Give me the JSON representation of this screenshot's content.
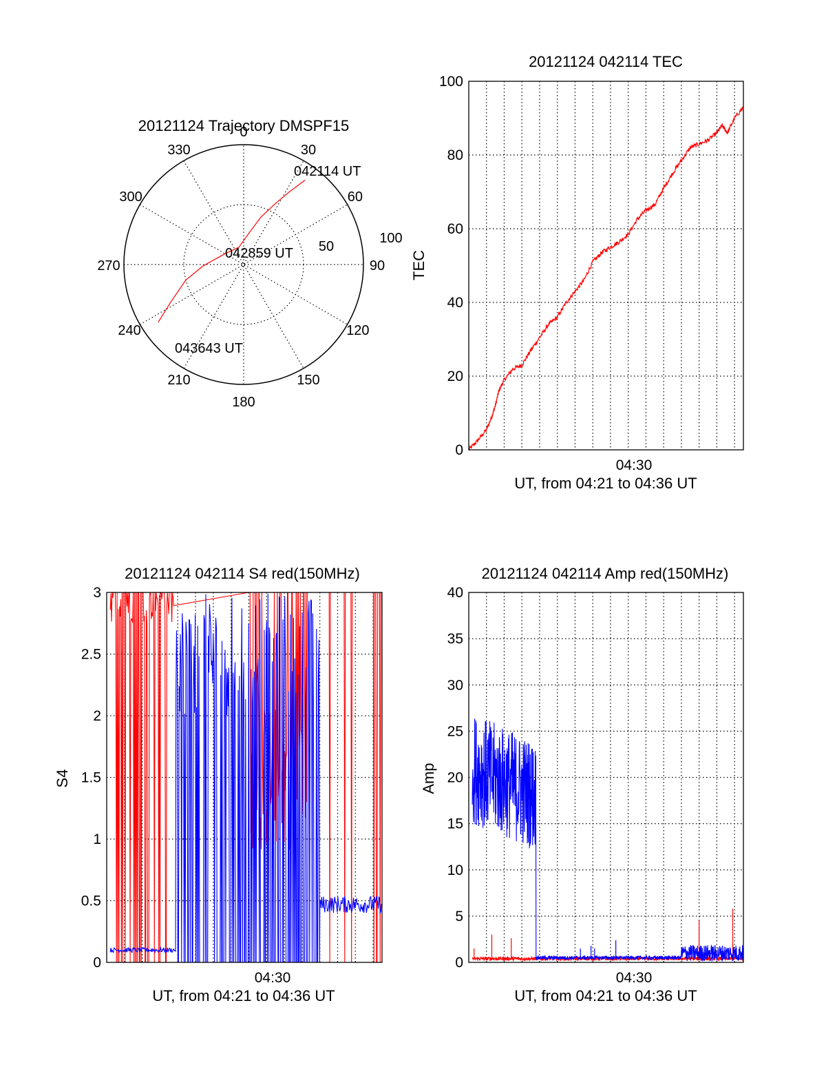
{
  "colors": {
    "red": "#ff0000",
    "blue": "#0000ff",
    "axis": "#000000"
  },
  "chart_data": [
    {
      "id": "trajectory",
      "type": "polar",
      "title": "20121124 Trajectory DMSPF15",
      "azimuth_labels": [
        "0",
        "30",
        "60",
        "90",
        "120",
        "150",
        "180",
        "210",
        "240",
        "270",
        "300",
        "330"
      ],
      "radius_labels": [
        "50",
        "100"
      ],
      "radius_max": 100,
      "grid": true,
      "annotations": [
        {
          "text": "042114 UT",
          "az": 36,
          "r": 87
        },
        {
          "text": "042859 UT",
          "az": 0,
          "r": 0
        },
        {
          "text": "043643 UT",
          "az": 222,
          "r": 86
        }
      ],
      "series": [
        {
          "color": "red",
          "points": [
            [
              36,
              87
            ],
            [
              32,
              71
            ],
            [
              27,
              56
            ],
            [
              20,
              42
            ],
            [
              10,
              27
            ],
            [
              345,
              15
            ],
            [
              300,
              18
            ],
            [
              268,
              34
            ],
            [
              255,
              50
            ],
            [
              243,
              68
            ],
            [
              236,
              86
            ]
          ]
        }
      ]
    },
    {
      "id": "tec",
      "type": "line",
      "title": "20121124 042114 TEC",
      "xlabel": "UT, from 04:21 to 04:36 UT",
      "ylabel": "TEC",
      "xtick_labels": [
        "04:30"
      ],
      "xlim_minutes": [
        0,
        15.5
      ],
      "ylim": [
        0,
        100
      ],
      "yticks": [
        0,
        20,
        40,
        60,
        80,
        100
      ],
      "grid": true,
      "series": [
        {
          "color": "red",
          "x": [
            0,
            0.5,
            1,
            1.3,
            1.5,
            1.7,
            2,
            2.5,
            3,
            3.5,
            4,
            4.5,
            5,
            5.5,
            6,
            6.5,
            7,
            7.5,
            8,
            8.5,
            9,
            9.5,
            10,
            10.5,
            11,
            11.5,
            12,
            12.5,
            13,
            13.5,
            14,
            14.3,
            14.6,
            15,
            15.5
          ],
          "y": [
            0,
            2.5,
            5.5,
            9,
            12,
            16,
            19,
            22,
            23,
            27,
            30.5,
            34,
            36,
            40,
            43,
            46,
            51,
            53.5,
            55,
            56.5,
            58.5,
            62.5,
            65,
            66.5,
            71,
            75,
            78.5,
            82,
            83,
            84,
            86,
            88,
            86,
            90,
            93
          ]
        }
      ]
    },
    {
      "id": "s4",
      "type": "line",
      "title": "20121124 042114 S4 red(150MHz)",
      "xlabel": "UT, from 04:21 to 04:36 UT",
      "ylabel": "S4",
      "xtick_labels": [
        "04:30"
      ],
      "xlim_minutes": [
        0,
        15.5
      ],
      "ylim": [
        0,
        3
      ],
      "yticks": [
        "0",
        "0.5",
        "1",
        "1.5",
        "2",
        "2.5",
        "3"
      ],
      "grid": true,
      "series": [
        {
          "color": "red",
          "segments": [
            {
              "x_range": [
                0.2,
                3.8
              ],
              "baseline": 3.0,
              "noise": 0.25,
              "spike_to": 0.0,
              "spike_prob": 0.18
            },
            {
              "x_range": [
                8.0,
                11.3
              ],
              "baseline": 1.5,
              "noise": 0.6,
              "spike_to": 3.0,
              "spike_prob": 0.35
            },
            {
              "x_range": [
                11.3,
                15.5
              ],
              "baseline": 3.0,
              "noise": 0.0,
              "spike_to": 0.0,
              "spike_prob": 0.05
            }
          ]
        },
        {
          "color": "blue",
          "segments": [
            {
              "x_range": [
                0.2,
                3.9
              ],
              "baseline": 0.1,
              "noise": 0.02,
              "spike_to": 0.1,
              "spike_prob": 0.0
            },
            {
              "x_range": [
                3.9,
                12.0
              ],
              "baseline": 2.5,
              "noise": 0.5,
              "spike_to": 0.0,
              "spike_prob": 0.5
            },
            {
              "x_range": [
                12.0,
                15.5
              ],
              "baseline": 0.47,
              "noise": 0.07,
              "spike_to": 0.47,
              "spike_prob": 0.0
            }
          ]
        }
      ]
    },
    {
      "id": "amp",
      "type": "line",
      "title": "20121124 042114 Amp red(150MHz)",
      "xlabel": "UT, from 04:21 to 04:36 UT",
      "ylabel": "Amp",
      "xtick_labels": [
        "04:30"
      ],
      "xlim_minutes": [
        0,
        15.5
      ],
      "ylim": [
        0,
        40
      ],
      "yticks": [
        0,
        5,
        10,
        15,
        20,
        25,
        30,
        35,
        40
      ],
      "grid": true,
      "series": [
        {
          "color": "red",
          "segments": [
            {
              "x_range": [
                0.2,
                15.5
              ],
              "baseline": 0.4,
              "noise": 0.2,
              "spikes": [
                [
                  0.3,
                  1.5
                ],
                [
                  1.3,
                  3.0
                ],
                [
                  2.4,
                  2.6
                ],
                [
                  13.0,
                  4.5
                ],
                [
                  14.9,
                  5.8
                ]
              ]
            }
          ]
        },
        {
          "color": "blue",
          "segments": [
            {
              "x_range": [
                0.2,
                3.8
              ],
              "baseline_start": 21,
              "baseline_end": 18,
              "noise": 6.0
            },
            {
              "x_range": [
                3.8,
                12.0
              ],
              "baseline": 0.5,
              "noise": 0.2,
              "spikes": [
                [
                  6.3,
                  1.5
                ],
                [
                  6.9,
                  1.8
                ],
                [
                  7.1,
                  1.5
                ],
                [
                  8.3,
                  2.4
                ]
              ]
            },
            {
              "x_range": [
                12.0,
                15.5
              ],
              "baseline": 1.0,
              "noise": 0.9
            }
          ]
        }
      ]
    }
  ]
}
